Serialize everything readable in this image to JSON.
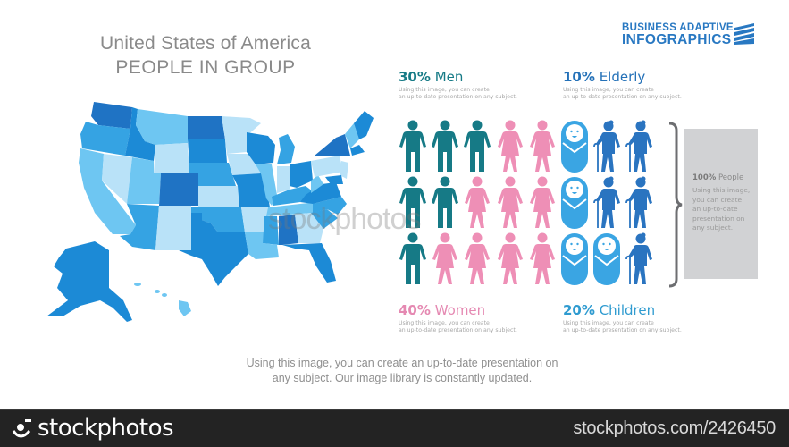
{
  "title": {
    "line1": "United States of America",
    "line2": "PEOPLE IN GROUP",
    "color": "#8a8a8a"
  },
  "brand": {
    "line1": "BUSINESS ADAPTIVE",
    "line2": "INFOGRAPHICS",
    "color": "#2878c2",
    "icon": "diagonal-stripes-icon"
  },
  "map": {
    "label": "United States map",
    "palette": [
      "#1f73c4",
      "#1c8ad6",
      "#35a3e3",
      "#6ec6f2",
      "#b9e2f8"
    ]
  },
  "stats": [
    {
      "pct": "30%",
      "label": "Men",
      "color": "#167a86",
      "desc_line1": "Using this image, you can create",
      "desc_line2": "an up-to-date presentation on any subject."
    },
    {
      "pct": "10%",
      "label": "Elderly",
      "color": "#2471b8",
      "desc_line1": "Using this image, you can create",
      "desc_line2": "an up-to-date presentation on any subject."
    },
    {
      "pct": "40%",
      "label": "Women",
      "color": "#e589b2",
      "desc_line1": "Using this image, you can create",
      "desc_line2": "an up-to-date presentation on any subject."
    },
    {
      "pct": "20%",
      "label": "Children",
      "color": "#2f9bd0",
      "desc_line1": "Using this image, you can create",
      "desc_line2": "an up-to-date presentation on any subject."
    }
  ],
  "icon_grid": {
    "rows": [
      [
        "man",
        "man",
        "man",
        "woman",
        "woman",
        "baby",
        "elder",
        "elder"
      ],
      [
        "man",
        "man",
        "woman",
        "woman",
        "woman",
        "baby",
        "elder",
        "elder"
      ],
      [
        "man",
        "woman",
        "woman",
        "woman",
        "woman",
        "baby",
        "baby",
        "elder"
      ]
    ],
    "colors": {
      "man": "#167a86",
      "woman": "#ee8fb6",
      "baby": "#3aa5e3",
      "elder": "#2a74c0"
    }
  },
  "summary_panel": {
    "pct": "100%",
    "label": "People",
    "desc": [
      "Using this image,",
      "you can create",
      "an up-to-date",
      "presentation on",
      "any subject."
    ]
  },
  "footer_text": {
    "line1": "Using this image, you can create an up-to-date presentation on",
    "line2": "any subject. Our image library is constantly updated."
  },
  "watermark": "stockphotos",
  "stockbar": {
    "logo_text": "stockphotos",
    "url": "stockphotos.com/2426450"
  }
}
